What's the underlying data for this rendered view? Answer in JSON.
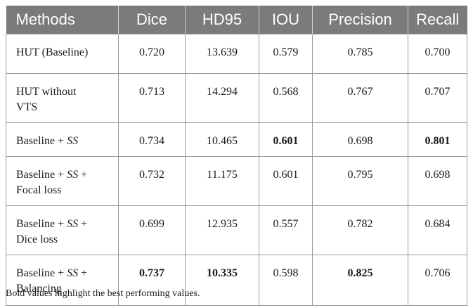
{
  "table": {
    "headers": [
      "Methods",
      "Dice",
      "HD95",
      "IOU",
      "Precision",
      "Recall"
    ],
    "rows": [
      {
        "method_line1": "HUT (Baseline)",
        "method_ss": "",
        "method_line1_end": "",
        "method_line2": "",
        "values": [
          "0.720",
          "13.639",
          "0.579",
          "0.785",
          "0.700"
        ]
      },
      {
        "method_line1": "HUT without",
        "method_ss": "",
        "method_line1_end": "",
        "method_line2": "VTS",
        "values": [
          "0.713",
          "14.294",
          "0.568",
          "0.767",
          "0.707"
        ]
      },
      {
        "method_line1": "Baseline + ",
        "method_ss": "SS",
        "method_line1_end": "",
        "method_line2": "",
        "values": [
          "0.734",
          "10.465",
          "0.601",
          "0.698",
          "0.801"
        ]
      },
      {
        "method_line1": "Baseline + ",
        "method_ss": "SS",
        "method_line1_end": " +",
        "method_line2": "Focal loss",
        "values": [
          "0.732",
          "11.175",
          "0.601",
          "0.795",
          "0.698"
        ]
      },
      {
        "method_line1": "Baseline + ",
        "method_ss": "SS",
        "method_line1_end": " +",
        "method_line2": "Dice loss",
        "values": [
          "0.699",
          "12.935",
          "0.557",
          "0.782",
          "0.684"
        ]
      },
      {
        "method_line1": "Baseline + ",
        "method_ss": "SS",
        "method_line1_end": " +",
        "method_line2": "Balancing",
        "values": [
          "0.737",
          "10.335",
          "0.598",
          "0.825",
          "0.706"
        ]
      }
    ],
    "bold_cells": {
      "2": [
        2,
        4
      ],
      "5": [
        0,
        1,
        3
      ]
    }
  },
  "footnote": "Bold values highlight the best performing values."
}
